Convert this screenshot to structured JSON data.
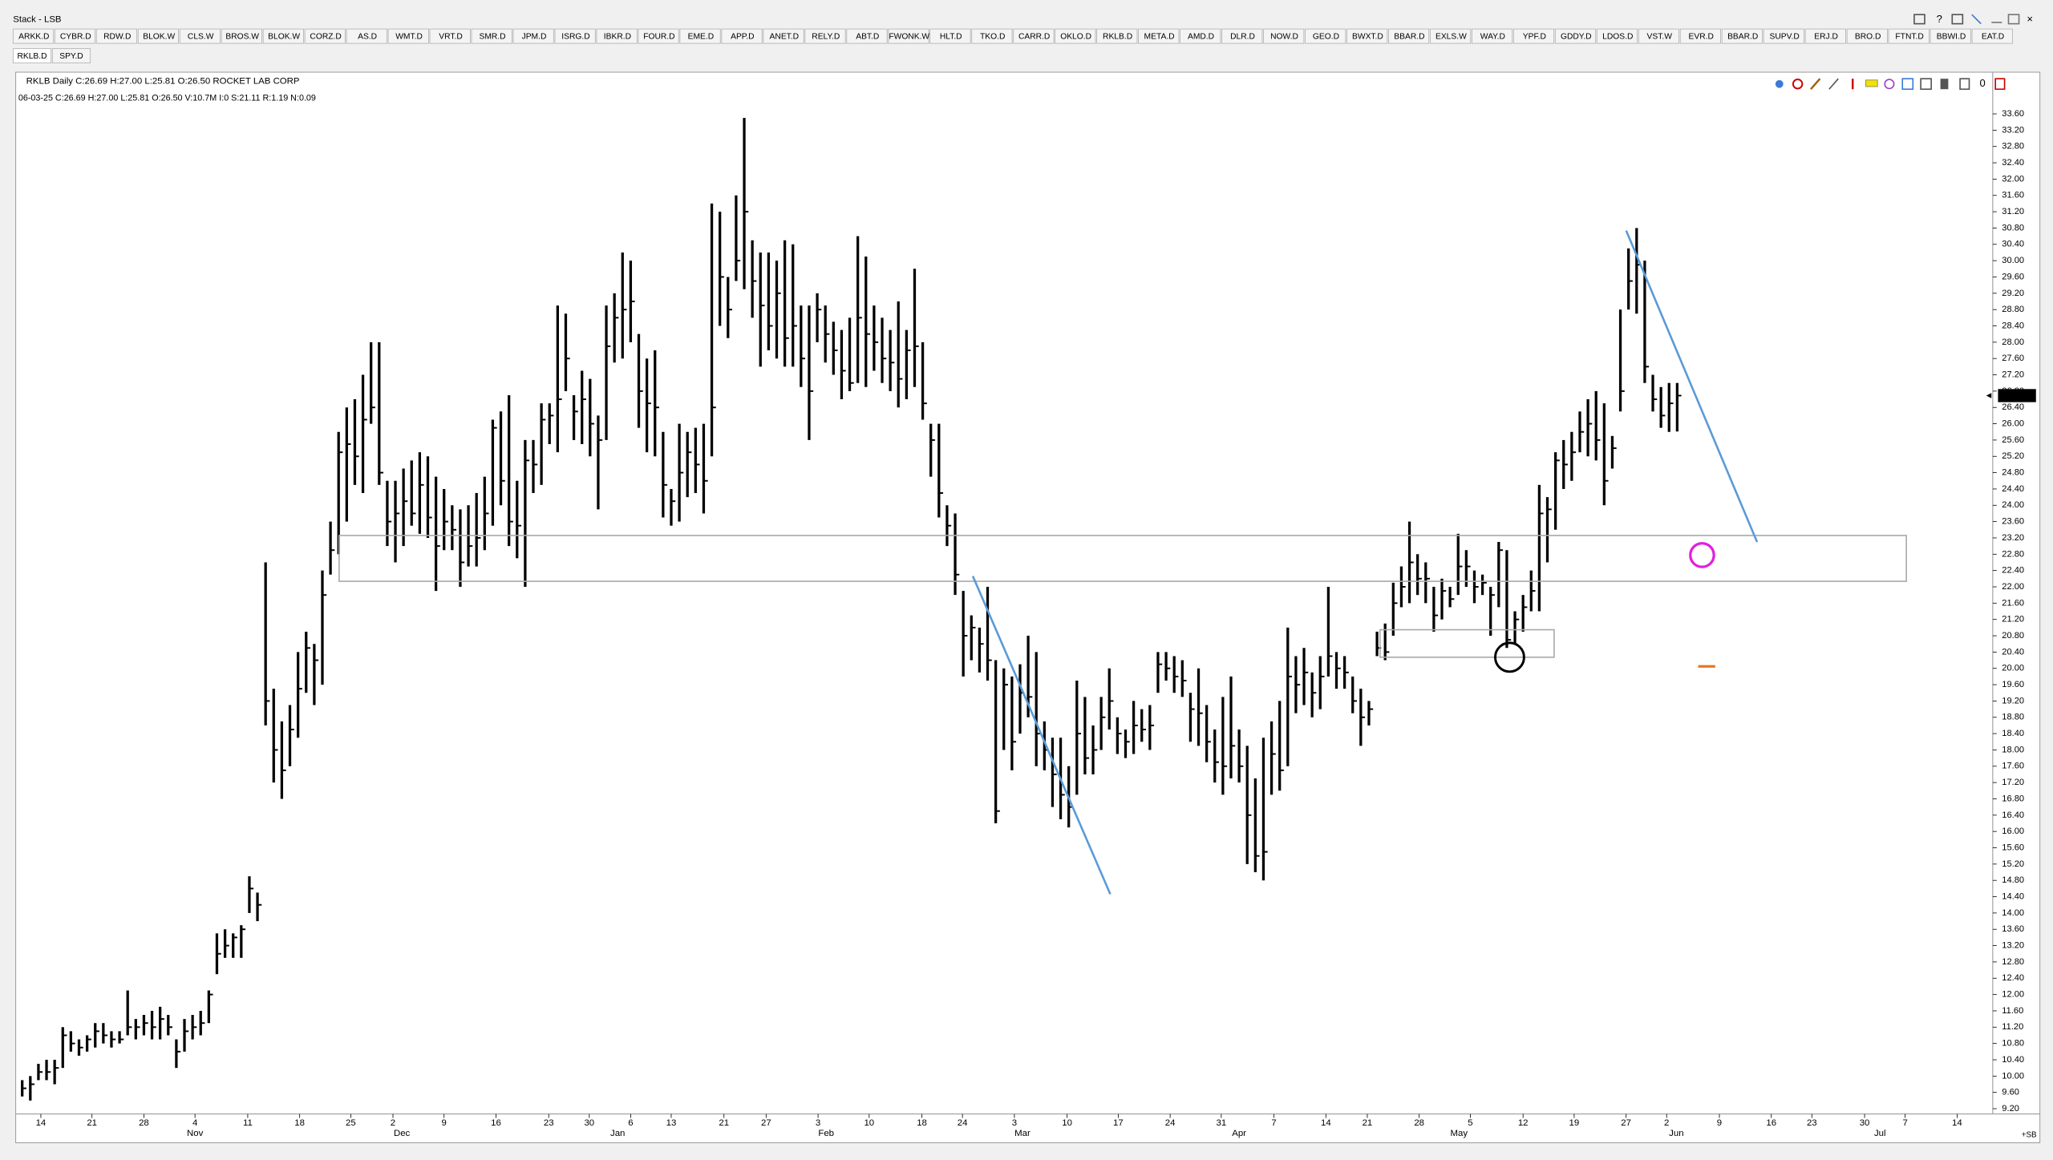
{
  "window": {
    "title": "Stack - LSB",
    "status": "+SB"
  },
  "toolbar": {
    "tabs": [
      "ARKK.D",
      "CYBR.D",
      "RDW.D",
      "BLOK.W",
      "CLS.W",
      "BROS.W",
      "BLOK.W",
      "CORZ.D",
      "AS.D",
      "WMT.D",
      "VRT.D",
      "SMR.D",
      "JPM.D",
      "ISRG.D",
      "IBKR.D",
      "FOUR.D",
      "EME.D",
      "APP.D",
      "ANET.D",
      "RELY.D",
      "ABT.D",
      "FWONK.W",
      "HLT.D",
      "TKO.D",
      "CARR.D",
      "OKLO.D",
      "RKLB.D",
      "META.D",
      "AMD.D",
      "DLR.D",
      "NOW.D",
      "GEO.D",
      "BWXT.D",
      "BBAR.D",
      "EXLS.W",
      "WAY.D",
      "YPF.D",
      "GDDY.D",
      "LDOS.D",
      "VST.W",
      "EVR.D",
      "BBAR.D",
      "SUPV.D",
      "ERJ.D",
      "BRO.D",
      "FTNT.D",
      "BBWI.D",
      "EAT.D"
    ],
    "open_charts": [
      "RKLB.D",
      "SPY.D"
    ]
  },
  "chart_data": {
    "type": "ohlc",
    "title": "RKLB Daily C:26.69 H:27.00 L:25.81 O:26.50 ROCKET LAB CORP",
    "subtitle": "06-03-25 C:26.69 H:27.00 L:25.81 O:26.50 V:10.7M I:0 S:21.11 R:1.19 N:0.09",
    "color": "#000000",
    "high": [
      9.9,
      10.0,
      10.3,
      10.4,
      10.4,
      11.2,
      11.1,
      10.9,
      11.0,
      11.3,
      11.3,
      11.1,
      11.1,
      12.1,
      11.4,
      11.5,
      11.6,
      11.7,
      11.5,
      10.9,
      11.4,
      11.5,
      11.6,
      12.1,
      13.5,
      13.6,
      13.5,
      13.7,
      14.9,
      14.5,
      22.6,
      19.5,
      18.7,
      19.1,
      20.4,
      20.9,
      20.6,
      22.4,
      23.6,
      25.8,
      26.4,
      26.6,
      27.2,
      28.0,
      28.0,
      24.6,
      24.6,
      24.9,
      25.1,
      25.3,
      25.2,
      24.7,
      24.4,
      24.0,
      23.9,
      24.0,
      24.3,
      24.7,
      26.1,
      26.3,
      26.7,
      24.6,
      25.6,
      25.6,
      26.5,
      26.5,
      28.9,
      28.7,
      26.7,
      27.3,
      27.1,
      26.2,
      28.9,
      29.2,
      30.2,
      30.0,
      28.2,
      27.6,
      27.8,
      25.8,
      24.4,
      26.0,
      25.8,
      25.9,
      26.0,
      31.4,
      31.2,
      29.6,
      31.6,
      33.5,
      30.5,
      30.2,
      30.2,
      30.0,
      30.5,
      30.4,
      28.9,
      28.9,
      29.2,
      28.9,
      28.5,
      28.3,
      28.6,
      30.6,
      30.1,
      28.9,
      28.6,
      28.3,
      29.0,
      28.3,
      29.8,
      28.0,
      26.0,
      26.0,
      24.0,
      23.8,
      21.9,
      21.3,
      21.0,
      22.0,
      20.2,
      20.0,
      19.8,
      20.1,
      20.8,
      20.4,
      18.7,
      18.3,
      18.3,
      17.6,
      19.7,
      19.3,
      18.6,
      19.3,
      20.0,
      18.8,
      18.5,
      19.2,
      19.0,
      19.1,
      20.4,
      20.4,
      20.3,
      20.2,
      19.4,
      20.0,
      19.1,
      18.5,
      19.3,
      19.8,
      18.5,
      18.1,
      17.3,
      18.3,
      18.7,
      19.2,
      21.0,
      20.3,
      20.5,
      19.9,
      20.3,
      22.0,
      20.4,
      20.3,
      19.8,
      19.5,
      19.2,
      20.9,
      21.1,
      22.1,
      22.5,
      23.6,
      22.8,
      22.6,
      22.0,
      22.2,
      22.0,
      23.3,
      22.9,
      22.4,
      22.3,
      22.0,
      23.1,
      22.9,
      21.4,
      21.8,
      22.4,
      24.5,
      24.2,
      25.3,
      25.6,
      25.8,
      26.3,
      26.6,
      26.8,
      26.5,
      25.7,
      28.8,
      30.3,
      30.8,
      30.0,
      27.2,
      26.9,
      27.0,
      27.0
    ],
    "low": [
      9.5,
      9.4,
      9.9,
      9.9,
      9.8,
      10.2,
      10.6,
      10.5,
      10.6,
      10.7,
      10.8,
      10.7,
      10.8,
      11.0,
      10.9,
      11.0,
      10.9,
      10.9,
      11.0,
      10.2,
      10.6,
      10.9,
      11.0,
      11.3,
      12.5,
      12.9,
      12.9,
      12.9,
      14.0,
      13.8,
      18.6,
      17.2,
      16.8,
      17.6,
      18.3,
      19.4,
      19.1,
      19.6,
      22.3,
      22.8,
      23.6,
      24.5,
      24.3,
      26.0,
      24.5,
      23.0,
      22.6,
      23.0,
      23.5,
      23.3,
      23.2,
      21.9,
      22.9,
      22.9,
      22.0,
      22.5,
      22.5,
      22.9,
      23.5,
      24.0,
      23.0,
      22.7,
      22.0,
      24.3,
      24.5,
      25.5,
      25.3,
      26.8,
      25.6,
      25.5,
      25.2,
      23.9,
      25.6,
      27.5,
      27.6,
      28.0,
      25.9,
      25.3,
      25.2,
      23.7,
      23.5,
      23.6,
      24.2,
      24.3,
      23.8,
      25.2,
      28.4,
      28.1,
      29.5,
      29.3,
      28.6,
      27.4,
      27.8,
      27.6,
      27.4,
      27.4,
      26.9,
      25.6,
      28.0,
      27.5,
      27.2,
      26.6,
      26.8,
      27.0,
      26.9,
      27.3,
      27.0,
      26.8,
      26.4,
      26.6,
      26.9,
      26.1,
      24.7,
      23.7,
      23.0,
      21.8,
      19.8,
      20.2,
      19.9,
      19.7,
      16.2,
      18.0,
      17.5,
      18.4,
      18.8,
      17.6,
      17.5,
      16.6,
      16.3,
      16.1,
      16.9,
      17.4,
      17.4,
      18.0,
      18.5,
      17.9,
      17.8,
      17.9,
      18.2,
      18.0,
      19.4,
      19.7,
      19.4,
      19.3,
      18.2,
      18.1,
      17.7,
      17.2,
      16.9,
      17.3,
      17.2,
      15.2,
      15.0,
      14.8,
      16.9,
      17.0,
      17.6,
      18.9,
      19.1,
      18.8,
      19.0,
      19.8,
      19.5,
      19.5,
      18.9,
      18.1,
      18.6,
      20.3,
      20.2,
      20.8,
      21.5,
      21.6,
      21.8,
      21.6,
      20.9,
      21.2,
      21.5,
      21.8,
      22.0,
      21.6,
      21.8,
      20.8,
      21.5,
      20.5,
      20.6,
      20.9,
      21.4,
      21.4,
      22.6,
      23.4,
      24.4,
      24.6,
      25.3,
      25.2,
      25.1,
      24.0,
      24.9,
      26.3,
      28.8,
      28.7,
      27.0,
      26.3,
      25.9,
      25.8,
      25.81
    ],
    "close": [
      9.7,
      9.8,
      10.1,
      10.1,
      10.2,
      11.0,
      10.8,
      10.7,
      10.9,
      11.1,
      11.0,
      10.9,
      10.9,
      11.2,
      11.2,
      11.3,
      11.2,
      11.4,
      11.2,
      10.6,
      11.1,
      11.2,
      11.3,
      12.0,
      13.0,
      13.2,
      13.4,
      13.6,
      14.6,
      14.2,
      19.2,
      18.0,
      17.5,
      18.5,
      19.5,
      20.5,
      20.2,
      21.8,
      22.9,
      25.3,
      25.5,
      25.2,
      26.1,
      26.4,
      24.8,
      23.6,
      23.8,
      24.1,
      23.8,
      24.5,
      23.7,
      23.0,
      23.6,
      23.4,
      22.6,
      23.0,
      23.2,
      23.8,
      25.9,
      24.6,
      23.6,
      23.5,
      25.1,
      25.0,
      26.1,
      26.2,
      26.6,
      27.6,
      26.3,
      26.6,
      26.0,
      25.6,
      27.9,
      28.6,
      28.8,
      29.0,
      26.8,
      26.5,
      26.4,
      24.5,
      24.1,
      24.8,
      25.3,
      25.0,
      24.6,
      26.4,
      29.6,
      28.8,
      30.0,
      31.2,
      29.5,
      28.9,
      28.4,
      29.2,
      28.1,
      28.4,
      27.6,
      26.8,
      28.8,
      28.2,
      27.8,
      27.3,
      27.0,
      28.6,
      28.2,
      28.0,
      27.6,
      27.5,
      27.1,
      27.8,
      27.9,
      26.5,
      25.6,
      24.3,
      23.5,
      22.3,
      20.8,
      21.0,
      20.6,
      20.2,
      16.5,
      19.6,
      18.2,
      19.4,
      19.3,
      18.4,
      18.0,
      17.4,
      16.9,
      16.6,
      18.4,
      17.8,
      18.0,
      18.8,
      19.2,
      18.4,
      18.2,
      18.6,
      18.5,
      18.6,
      20.1,
      20.0,
      19.8,
      19.7,
      19.0,
      18.9,
      18.2,
      17.7,
      17.6,
      18.1,
      17.6,
      16.4,
      15.4,
      15.5,
      17.9,
      17.5,
      19.8,
      19.6,
      19.9,
      19.4,
      19.8,
      20.3,
      20.0,
      19.9,
      19.2,
      18.8,
      19.0,
      20.5,
      20.4,
      21.6,
      22.0,
      22.6,
      22.2,
      22.2,
      21.3,
      21.9,
      21.7,
      22.5,
      22.5,
      22.0,
      22.1,
      21.8,
      22.9,
      20.7,
      21.2,
      21.5,
      21.9,
      23.8,
      23.9,
      25.1,
      25.0,
      25.3,
      25.8,
      26.0,
      25.6,
      24.6,
      25.4,
      26.8,
      29.5,
      29.9,
      27.4,
      26.6,
      26.2,
      26.5,
      26.69
    ],
    "xlim": [
      -0.8,
      242.9
    ],
    "xticks": [
      {
        "value": 2.3,
        "label": "14"
      },
      {
        "value": 8.6,
        "label": "21"
      },
      {
        "value": 15.0,
        "label": "28"
      },
      {
        "value": 21.3,
        "label": "4"
      },
      {
        "value": 27.8,
        "label": "11"
      },
      {
        "value": 34.2,
        "label": "18"
      },
      {
        "value": 40.5,
        "label": "25"
      },
      {
        "value": 45.7,
        "label": "2"
      },
      {
        "value": 52.0,
        "label": "9"
      },
      {
        "value": 58.4,
        "label": "16"
      },
      {
        "value": 64.9,
        "label": "23"
      },
      {
        "value": 69.9,
        "label": "30"
      },
      {
        "value": 75.0,
        "label": "6"
      },
      {
        "value": 80.0,
        "label": "13"
      },
      {
        "value": 86.5,
        "label": "21"
      },
      {
        "value": 91.7,
        "label": "27"
      },
      {
        "value": 98.1,
        "label": "3"
      },
      {
        "value": 104.4,
        "label": "10"
      },
      {
        "value": 110.9,
        "label": "18"
      },
      {
        "value": 115.9,
        "label": "24"
      },
      {
        "value": 122.3,
        "label": "3"
      },
      {
        "value": 128.8,
        "label": "10"
      },
      {
        "value": 135.1,
        "label": "17"
      },
      {
        "value": 141.5,
        "label": "24"
      },
      {
        "value": 147.8,
        "label": "31"
      },
      {
        "value": 154.3,
        "label": "7"
      },
      {
        "value": 160.7,
        "label": "14"
      },
      {
        "value": 165.8,
        "label": "21"
      },
      {
        "value": 172.2,
        "label": "28"
      },
      {
        "value": 178.5,
        "label": "5"
      },
      {
        "value": 185.0,
        "label": "12"
      },
      {
        "value": 191.3,
        "label": "19"
      },
      {
        "value": 197.7,
        "label": "27"
      },
      {
        "value": 202.7,
        "label": "2"
      },
      {
        "value": 209.2,
        "label": "9"
      },
      {
        "value": 215.6,
        "label": "16"
      },
      {
        "value": 220.6,
        "label": "23"
      },
      {
        "value": 227.1,
        "label": "30"
      },
      {
        "value": 232.1,
        "label": "7"
      },
      {
        "value": 238.5,
        "label": "14"
      }
    ],
    "month_labels": [
      {
        "value": 21.3,
        "label": "Nov"
      },
      {
        "value": 46.8,
        "label": "Dec"
      },
      {
        "value": 73.4,
        "label": "Jan"
      },
      {
        "value": 99.1,
        "label": "Feb"
      },
      {
        "value": 123.3,
        "label": "Mar"
      },
      {
        "value": 150.0,
        "label": "Apr"
      },
      {
        "value": 177.1,
        "label": "May"
      },
      {
        "value": 203.9,
        "label": "Jun"
      },
      {
        "value": 229.0,
        "label": "Jul"
      }
    ],
    "ylim": [
      9.07,
      33.82
    ],
    "yticks": [
      {
        "value": 9.2,
        "label": "9.20"
      },
      {
        "value": 9.6,
        "label": "9.60"
      },
      {
        "value": 10,
        "label": "10.00"
      },
      {
        "value": 10.4,
        "label": "10.40"
      },
      {
        "value": 10.8,
        "label": "10.80"
      },
      {
        "value": 11.2,
        "label": "11.20"
      },
      {
        "value": 11.6,
        "label": "11.60"
      },
      {
        "value": 12,
        "label": "12.00"
      },
      {
        "value": 12.4,
        "label": "12.40"
      },
      {
        "value": 12.8,
        "label": "12.80"
      },
      {
        "value": 13.2,
        "label": "13.20"
      },
      {
        "value": 13.6,
        "label": "13.60"
      },
      {
        "value": 14,
        "label": "14.00"
      },
      {
        "value": 14.4,
        "label": "14.40"
      },
      {
        "value": 14.8,
        "label": "14.80"
      },
      {
        "value": 15.2,
        "label": "15.20"
      },
      {
        "value": 15.6,
        "label": "15.60"
      },
      {
        "value": 16,
        "label": "16.00"
      },
      {
        "value": 16.4,
        "label": "16.40"
      },
      {
        "value": 16.8,
        "label": "16.80"
      },
      {
        "value": 17.2,
        "label": "17.20"
      },
      {
        "value": 17.6,
        "label": "17.60"
      },
      {
        "value": 18,
        "label": "18.00"
      },
      {
        "value": 18.4,
        "label": "18.40"
      },
      {
        "value": 18.8,
        "label": "18.80"
      },
      {
        "value": 19.2,
        "label": "19.20"
      },
      {
        "value": 19.6,
        "label": "19.60"
      },
      {
        "value": 20,
        "label": "20.00"
      },
      {
        "value": 20.4,
        "label": "20.40"
      },
      {
        "value": 20.8,
        "label": "20.80"
      },
      {
        "value": 21.2,
        "label": "21.20"
      },
      {
        "value": 21.6,
        "label": "21.60"
      },
      {
        "value": 22,
        "label": "22.00"
      },
      {
        "value": 22.4,
        "label": "22.40"
      },
      {
        "value": 22.8,
        "label": "22.80"
      },
      {
        "value": 23.2,
        "label": "23.20"
      },
      {
        "value": 23.6,
        "label": "23.60"
      },
      {
        "value": 24,
        "label": "24.00"
      },
      {
        "value": 24.4,
        "label": "24.40"
      },
      {
        "value": 24.8,
        "label": "24.80"
      },
      {
        "value": 25.2,
        "label": "25.20"
      },
      {
        "value": 25.6,
        "label": "25.60"
      },
      {
        "value": 26,
        "label": "26.00"
      },
      {
        "value": 26.4,
        "label": "26.40"
      },
      {
        "value": 26.8,
        "label": "26.80"
      },
      {
        "value": 27.2,
        "label": "27.20"
      },
      {
        "value": 27.6,
        "label": "27.60"
      },
      {
        "value": 28,
        "label": "28.00"
      },
      {
        "value": 28.4,
        "label": "28.40"
      },
      {
        "value": 28.8,
        "label": "28.80"
      },
      {
        "value": 29.2,
        "label": "29.20"
      },
      {
        "value": 29.6,
        "label": "29.60"
      },
      {
        "value": 30,
        "label": "30.00"
      },
      {
        "value": 30.4,
        "label": "30.40"
      },
      {
        "value": 30.8,
        "label": "30.80"
      },
      {
        "value": 31.2,
        "label": "31.20"
      },
      {
        "value": 31.6,
        "label": "31.60"
      },
      {
        "value": 32,
        "label": "32.00"
      },
      {
        "value": 32.4,
        "label": "32.40"
      },
      {
        "value": 32.8,
        "label": "32.80"
      },
      {
        "value": 33.2,
        "label": "33.20"
      },
      {
        "value": 33.6,
        "label": "33.60"
      }
    ],
    "grid": false
  }
}
